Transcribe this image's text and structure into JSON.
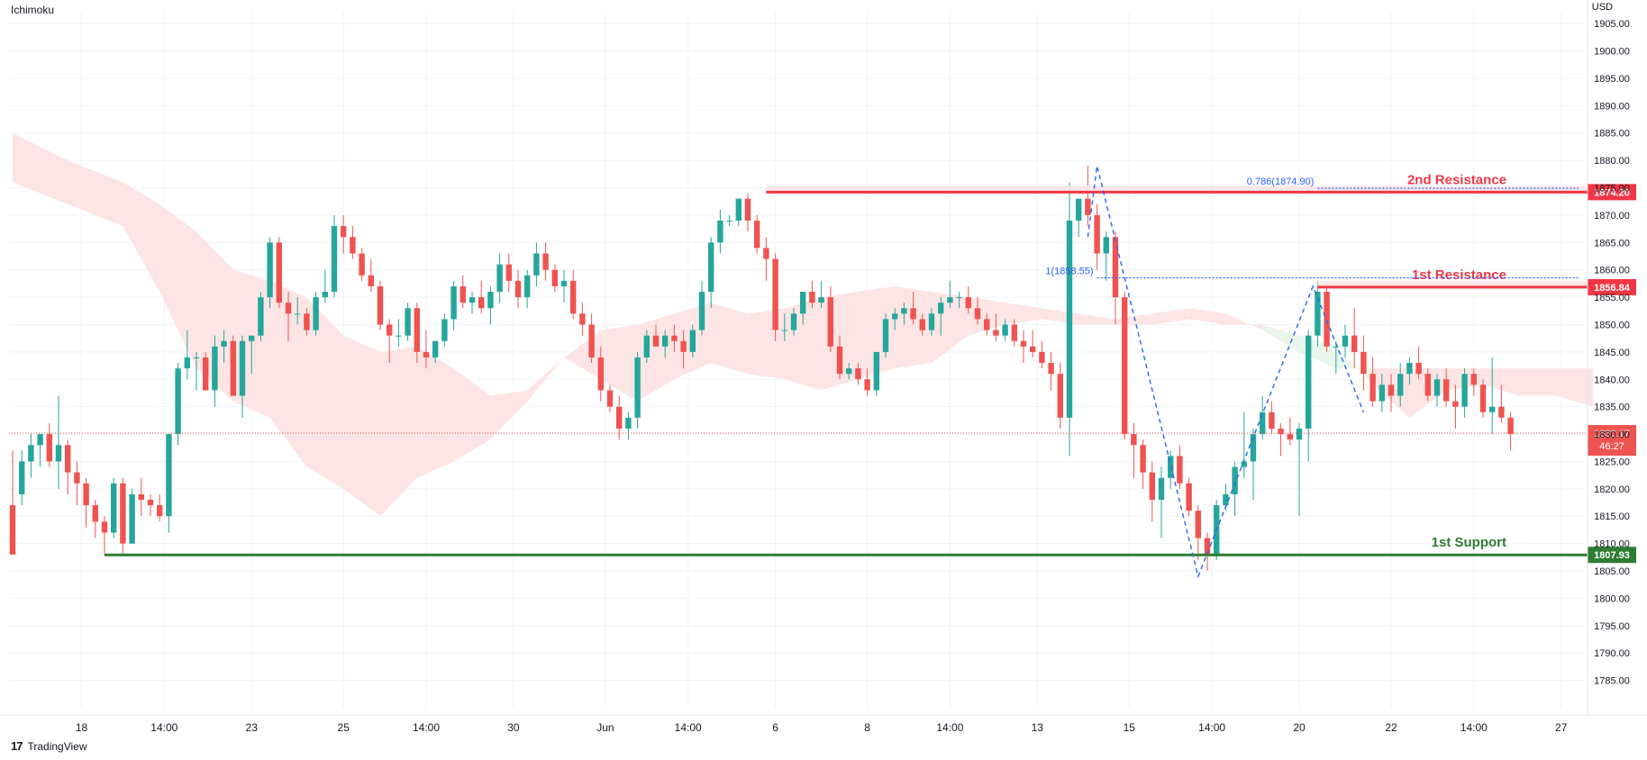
{
  "header": {
    "indicator": "Ichimoku",
    "currency": "USD"
  },
  "footer": {
    "brand_mark": "17",
    "brand": "TradingView"
  },
  "colors": {
    "up": "#26a69a",
    "down": "#ef5350",
    "resistance": "#f23645",
    "support": "#2e7d32",
    "fib": "#2962ff",
    "cloud_bear": "#fde4e4",
    "cloud_bull": "#e8f5e9",
    "grid": "#f0f3fa"
  },
  "chart_data": {
    "type": "candlestick",
    "ylim": [
      1780,
      1907
    ],
    "y_ticks": [
      1785,
      1790,
      1795,
      1800,
      1805,
      1810,
      1815,
      1820,
      1825,
      1830,
      1835,
      1840,
      1845,
      1850,
      1855,
      1860,
      1865,
      1870,
      1875,
      1880,
      1885,
      1890,
      1895,
      1900,
      1905
    ],
    "y_tick_labels": [
      "1785.00",
      "1790.00",
      "1795.00",
      "1800.00",
      "1805.00",
      "1810.00",
      "1815.00",
      "1820.00",
      "1825.00",
      "1830.00",
      "1835.00",
      "1840.00",
      "1845.00",
      "1850.00",
      "1855.00",
      "1860.00",
      "1865.00",
      "1870.00",
      "1875.00",
      "1880.00",
      "1885.00",
      "1890.00",
      "1895.00",
      "1900.00",
      "1905.00"
    ],
    "x_ticks": [
      {
        "i": 7.5,
        "label": "18"
      },
      {
        "i": 16.5,
        "label": "14:00"
      },
      {
        "i": 26,
        "label": "23"
      },
      {
        "i": 36,
        "label": "25"
      },
      {
        "i": 45,
        "label": "14:00"
      },
      {
        "i": 54.5,
        "label": "30"
      },
      {
        "i": 64.5,
        "label": "Jun"
      },
      {
        "i": 73.5,
        "label": "14:00"
      },
      {
        "i": 83,
        "label": "6"
      },
      {
        "i": 93,
        "label": "8"
      },
      {
        "i": 102,
        "label": "14:00"
      },
      {
        "i": 111.5,
        "label": "13"
      },
      {
        "i": 121.5,
        "label": "15"
      },
      {
        "i": 130.5,
        "label": "14:00"
      },
      {
        "i": 140,
        "label": "20"
      },
      {
        "i": 150,
        "label": "22"
      },
      {
        "i": 159,
        "label": "14:00"
      },
      {
        "i": 168.5,
        "label": "27"
      }
    ],
    "candles": [
      [
        1817,
        1827,
        1808,
        1808
      ],
      [
        1819,
        1827,
        1817,
        1825
      ],
      [
        1825,
        1830,
        1822,
        1828
      ],
      [
        1828,
        1830,
        1824,
        1830
      ],
      [
        1830,
        1832,
        1824,
        1825
      ],
      [
        1825,
        1837,
        1820,
        1828
      ],
      [
        1828,
        1829,
        1819,
        1823
      ],
      [
        1823,
        1825,
        1817,
        1821
      ],
      [
        1821,
        1822,
        1813,
        1817
      ],
      [
        1817,
        1818,
        1811,
        1814
      ],
      [
        1814,
        1815,
        1808,
        1812
      ],
      [
        1812,
        1822,
        1811,
        1821
      ],
      [
        1821,
        1822,
        1808,
        1810
      ],
      [
        1810,
        1820,
        1810,
        1819
      ],
      [
        1819,
        1822,
        1815,
        1818
      ],
      [
        1818,
        1819,
        1815,
        1817
      ],
      [
        1817,
        1819,
        1814,
        1815
      ],
      [
        1815,
        1830,
        1812,
        1830
      ],
      [
        1830,
        1843,
        1828,
        1842
      ],
      [
        1842,
        1849,
        1840,
        1844
      ],
      [
        1844,
        1845,
        1838,
        1844
      ],
      [
        1844,
        1845,
        1838,
        1838
      ],
      [
        1838,
        1848,
        1835,
        1846
      ],
      [
        1846,
        1849,
        1843,
        1847
      ],
      [
        1847,
        1848,
        1837,
        1837
      ],
      [
        1837,
        1848,
        1833,
        1847
      ],
      [
        1847,
        1848,
        1841,
        1848
      ],
      [
        1848,
        1856,
        1847,
        1855
      ],
      [
        1855,
        1866,
        1853,
        1865
      ],
      [
        1865,
        1866,
        1853,
        1854
      ],
      [
        1854,
        1856,
        1847,
        1852
      ],
      [
        1852,
        1855,
        1850,
        1852
      ],
      [
        1852,
        1853,
        1848,
        1849
      ],
      [
        1849,
        1856,
        1848,
        1855
      ],
      [
        1855,
        1860,
        1854,
        1856
      ],
      [
        1856,
        1870,
        1855,
        1868
      ],
      [
        1868,
        1870,
        1863,
        1866
      ],
      [
        1866,
        1868,
        1862,
        1863
      ],
      [
        1863,
        1864,
        1858,
        1859
      ],
      [
        1859,
        1862,
        1856,
        1857
      ],
      [
        1857,
        1858,
        1849,
        1850
      ],
      [
        1850,
        1851,
        1843,
        1848
      ],
      [
        1848,
        1851,
        1846,
        1848
      ],
      [
        1848,
        1854,
        1847,
        1853
      ],
      [
        1853,
        1854,
        1843,
        1845
      ],
      [
        1845,
        1849,
        1842,
        1844
      ],
      [
        1844,
        1847,
        1843,
        1847
      ],
      [
        1847,
        1852,
        1846,
        1851
      ],
      [
        1851,
        1858,
        1849,
        1857
      ],
      [
        1857,
        1859,
        1853,
        1854
      ],
      [
        1854,
        1856,
        1852,
        1855
      ],
      [
        1855,
        1858,
        1852,
        1853
      ],
      [
        1853,
        1857,
        1850,
        1856
      ],
      [
        1856,
        1863,
        1854,
        1861
      ],
      [
        1861,
        1863,
        1856,
        1858
      ],
      [
        1858,
        1860,
        1853,
        1855
      ],
      [
        1855,
        1860,
        1853,
        1859
      ],
      [
        1859,
        1865,
        1857,
        1863
      ],
      [
        1863,
        1865,
        1858,
        1860
      ],
      [
        1860,
        1861,
        1856,
        1857
      ],
      [
        1857,
        1860,
        1854,
        1858
      ],
      [
        1858,
        1860,
        1851,
        1852
      ],
      [
        1852,
        1854,
        1848,
        1850
      ],
      [
        1850,
        1852,
        1843,
        1844
      ],
      [
        1844,
        1846,
        1836,
        1838
      ],
      [
        1838,
        1839,
        1834,
        1835
      ],
      [
        1835,
        1837,
        1829,
        1831
      ],
      [
        1831,
        1834,
        1829,
        1833
      ],
      [
        1833,
        1845,
        1831,
        1844
      ],
      [
        1844,
        1849,
        1843,
        1848
      ],
      [
        1848,
        1850,
        1846,
        1846
      ],
      [
        1846,
        1849,
        1844,
        1848
      ],
      [
        1848,
        1850,
        1845,
        1847
      ],
      [
        1847,
        1849,
        1842,
        1845
      ],
      [
        1845,
        1850,
        1844,
        1849
      ],
      [
        1849,
        1858,
        1848,
        1856
      ],
      [
        1856,
        1866,
        1853,
        1865
      ],
      [
        1865,
        1871,
        1863,
        1869
      ],
      [
        1869,
        1870,
        1868,
        1869
      ],
      [
        1869,
        1873,
        1868,
        1873
      ],
      [
        1873,
        1874,
        1867,
        1869
      ],
      [
        1869,
        1870,
        1863,
        1864
      ],
      [
        1864,
        1866,
        1858,
        1862
      ],
      [
        1862,
        1863,
        1847,
        1849
      ],
      [
        1849,
        1852,
        1847,
        1849
      ],
      [
        1849,
        1853,
        1848,
        1852
      ],
      [
        1852,
        1856,
        1850,
        1856
      ],
      [
        1856,
        1858,
        1853,
        1854
      ],
      [
        1854,
        1858,
        1853,
        1855
      ],
      [
        1855,
        1857,
        1845,
        1846
      ],
      [
        1846,
        1848,
        1840,
        1841
      ],
      [
        1841,
        1843,
        1840,
        1842
      ],
      [
        1842,
        1843,
        1839,
        1840
      ],
      [
        1840,
        1842,
        1837,
        1838
      ],
      [
        1838,
        1845,
        1837,
        1845
      ],
      [
        1845,
        1852,
        1844,
        1851
      ],
      [
        1851,
        1853,
        1849,
        1852
      ],
      [
        1852,
        1854,
        1850,
        1853
      ],
      [
        1853,
        1856,
        1850,
        1851
      ],
      [
        1851,
        1852,
        1848,
        1849
      ],
      [
        1849,
        1853,
        1848,
        1852
      ],
      [
        1852,
        1855,
        1848,
        1854
      ],
      [
        1854,
        1858,
        1853,
        1855
      ],
      [
        1855,
        1856,
        1853,
        1855
      ],
      [
        1855,
        1857,
        1852,
        1853
      ],
      [
        1853,
        1855,
        1850,
        1851
      ],
      [
        1851,
        1852,
        1848,
        1849
      ],
      [
        1849,
        1852,
        1847,
        1848
      ],
      [
        1848,
        1851,
        1847,
        1850
      ],
      [
        1850,
        1851,
        1846,
        1847
      ],
      [
        1847,
        1849,
        1843,
        1846
      ],
      [
        1846,
        1849,
        1844,
        1845
      ],
      [
        1845,
        1847,
        1842,
        1843
      ],
      [
        1843,
        1845,
        1838,
        1841
      ],
      [
        1841,
        1843,
        1831,
        1833
      ],
      [
        1833,
        1876,
        1826,
        1869
      ],
      [
        1869,
        1873,
        1866,
        1873
      ],
      [
        1873,
        1879,
        1868,
        1870
      ],
      [
        1870,
        1872,
        1860,
        1863
      ],
      [
        1863,
        1867,
        1858,
        1866
      ],
      [
        1866,
        1867,
        1850,
        1855
      ],
      [
        1855,
        1856,
        1829,
        1830
      ],
      [
        1830,
        1832,
        1822,
        1828
      ],
      [
        1828,
        1829,
        1820,
        1823
      ],
      [
        1823,
        1825,
        1814,
        1818
      ],
      [
        1818,
        1824,
        1811,
        1822
      ],
      [
        1822,
        1827,
        1820,
        1826
      ],
      [
        1826,
        1828,
        1820,
        1821
      ],
      [
        1821,
        1822,
        1815,
        1816
      ],
      [
        1816,
        1817,
        1807,
        1811
      ],
      [
        1811,
        1812,
        1805,
        1808
      ],
      [
        1808,
        1818,
        1807,
        1817
      ],
      [
        1817,
        1821,
        1816,
        1819
      ],
      [
        1819,
        1825,
        1815,
        1824
      ],
      [
        1824,
        1834,
        1822,
        1825
      ],
      [
        1825,
        1831,
        1818,
        1830
      ],
      [
        1830,
        1837,
        1829,
        1834
      ],
      [
        1834,
        1836,
        1830,
        1831
      ],
      [
        1831,
        1832,
        1826,
        1830
      ],
      [
        1830,
        1833,
        1828,
        1829
      ],
      [
        1829,
        1832,
        1815,
        1831
      ],
      [
        1831,
        1849,
        1825,
        1848
      ],
      [
        1848,
        1858,
        1846,
        1856
      ],
      [
        1856,
        1857,
        1845,
        1846
      ],
      [
        1846,
        1847,
        1841,
        1846
      ],
      [
        1846,
        1850,
        1844,
        1848
      ],
      [
        1848,
        1853,
        1842,
        1845
      ],
      [
        1845,
        1848,
        1838,
        1841
      ],
      [
        1841,
        1844,
        1835,
        1836
      ],
      [
        1836,
        1841,
        1834,
        1839
      ],
      [
        1839,
        1841,
        1834,
        1837
      ],
      [
        1837,
        1843,
        1835,
        1841
      ],
      [
        1841,
        1844,
        1839,
        1843
      ],
      [
        1843,
        1846,
        1840,
        1841
      ],
      [
        1841,
        1842,
        1836,
        1837
      ],
      [
        1837,
        1841,
        1835,
        1840
      ],
      [
        1840,
        1842,
        1835,
        1836
      ],
      [
        1836,
        1839,
        1831,
        1835
      ],
      [
        1835,
        1842,
        1833,
        1841
      ],
      [
        1841,
        1842,
        1837,
        1839
      ],
      [
        1839,
        1840,
        1833,
        1834
      ],
      [
        1834,
        1844,
        1830,
        1835
      ],
      [
        1835,
        1839,
        1832,
        1833
      ],
      [
        1833,
        1834,
        1827,
        1830
      ]
    ],
    "lines": [
      {
        "name": "2nd Resistance",
        "value": 1874.2,
        "value_label": "1874.20",
        "start_i": 82
      },
      {
        "name": "1st Resistance",
        "value": 1856.84,
        "value_label": "1856.84",
        "start_i": 142
      },
      {
        "name": "1st Support",
        "value": 1807.93,
        "value_label": "1807.93",
        "start_i": 10
      }
    ],
    "fib_levels": [
      {
        "label": "0.786(1874.90)",
        "value": 1874.9,
        "start_i": 142
      },
      {
        "label": "1(1858.55)",
        "value": 1858.55,
        "start_i": 118
      }
    ],
    "zigzag": [
      [
        117,
        1866
      ],
      [
        118,
        1879
      ],
      [
        129,
        1804
      ],
      [
        141.5,
        1857
      ],
      [
        147,
        1834
      ]
    ],
    "last_price": {
      "value": 1830.17,
      "label": "1830.17",
      "countdown": "46:27"
    },
    "cloud": [
      [
        0,
        1885,
        1876
      ],
      [
        6,
        1880,
        1872
      ],
      [
        12,
        1876,
        1868
      ],
      [
        16,
        1872,
        1856
      ],
      [
        20,
        1867,
        1842
      ],
      [
        24,
        1860,
        1836
      ],
      [
        28,
        1858,
        1833
      ],
      [
        32,
        1855,
        1824
      ],
      [
        36,
        1848,
        1820
      ],
      [
        40,
        1845,
        1815
      ],
      [
        44,
        1846,
        1822
      ],
      [
        48,
        1842,
        1825
      ],
      [
        52,
        1837,
        1829
      ],
      [
        56,
        1838,
        1836
      ],
      [
        60,
        1844,
        1844
      ],
      [
        64,
        1849,
        1840
      ],
      [
        68,
        1850,
        1836
      ],
      [
        72,
        1852,
        1840
      ],
      [
        76,
        1854,
        1843
      ],
      [
        80,
        1852,
        1841
      ],
      [
        84,
        1853,
        1840
      ],
      [
        88,
        1855,
        1838
      ],
      [
        92,
        1856,
        1840
      ],
      [
        96,
        1857,
        1842
      ],
      [
        100,
        1856,
        1843
      ],
      [
        104,
        1855,
        1848
      ],
      [
        108,
        1854,
        1850
      ],
      [
        112,
        1853,
        1851
      ],
      [
        116,
        1852,
        1850
      ],
      [
        120,
        1851,
        1850
      ],
      [
        124,
        1852,
        1850
      ],
      [
        128,
        1853,
        1851
      ],
      [
        132,
        1852,
        1850
      ],
      [
        136,
        1849,
        1850
      ],
      [
        140,
        1845,
        1848
      ],
      [
        144,
        1842,
        1846
      ],
      [
        148,
        1842,
        1839
      ],
      [
        152,
        1842,
        1833
      ],
      [
        156,
        1842,
        1838
      ],
      [
        160,
        1842,
        1839
      ],
      [
        164,
        1842,
        1837
      ],
      [
        168,
        1842,
        1837
      ],
      [
        172,
        1842,
        1835
      ]
    ]
  }
}
